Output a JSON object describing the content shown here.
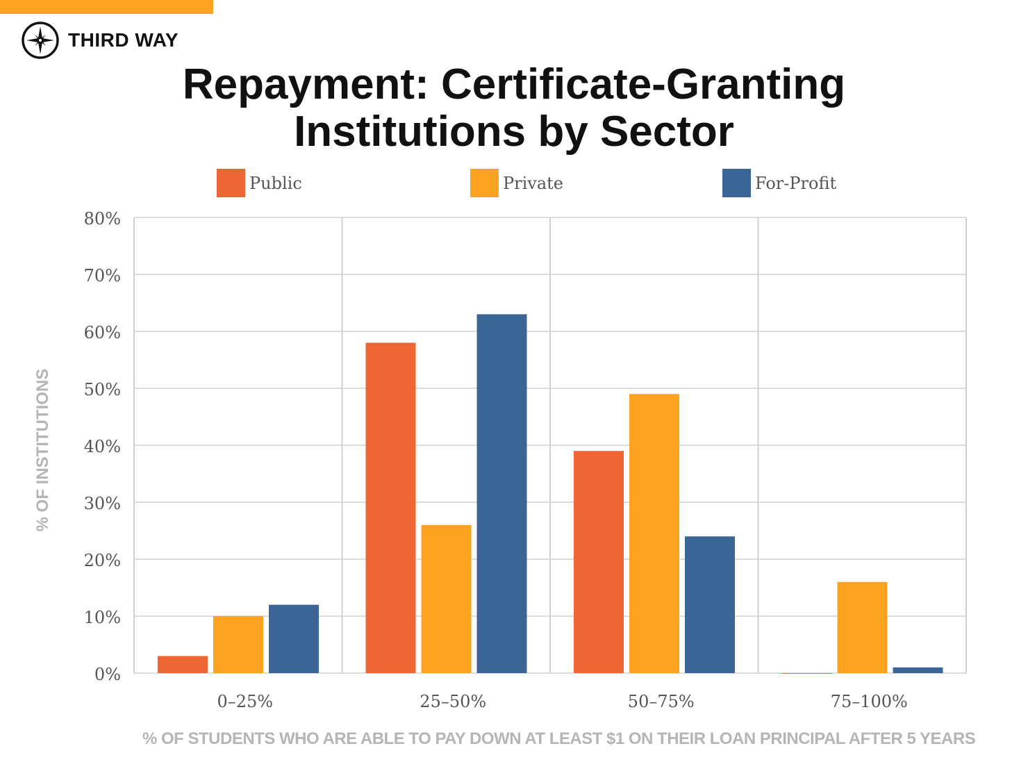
{
  "brand": {
    "name": "THIRD WAY",
    "accent": "#fca321"
  },
  "chart_data": {
    "type": "bar",
    "title": "Repayment: Certificate-Granting Institutions by Sector",
    "title_lines": [
      "Repayment: Certificate-Granting",
      "Institutions by Sector"
    ],
    "xlabel": "% OF STUDENTS WHO ARE ABLE TO PAY DOWN AT LEAST $1 ON THEIR LOAN PRINCIPAL AFTER 5 YEARS",
    "ylabel": "% OF INSTITUTIONS",
    "categories": [
      "0–25%",
      "25–50%",
      "50–75%",
      "75–100%"
    ],
    "series": [
      {
        "name": "Public",
        "color": "#ee6633",
        "values": [
          3,
          58,
          39,
          0
        ]
      },
      {
        "name": "Private",
        "color": "#fca321",
        "values": [
          10,
          26,
          49,
          16
        ]
      },
      {
        "name": "For-Profit",
        "color": "#3b6594",
        "values": [
          12,
          63,
          24,
          1
        ]
      }
    ],
    "ylim": [
      0,
      80
    ],
    "yticks": [
      "0%",
      "10%",
      "20%",
      "30%",
      "40%",
      "50%",
      "60%",
      "70%",
      "80%"
    ],
    "grid": true,
    "legend": "top"
  }
}
